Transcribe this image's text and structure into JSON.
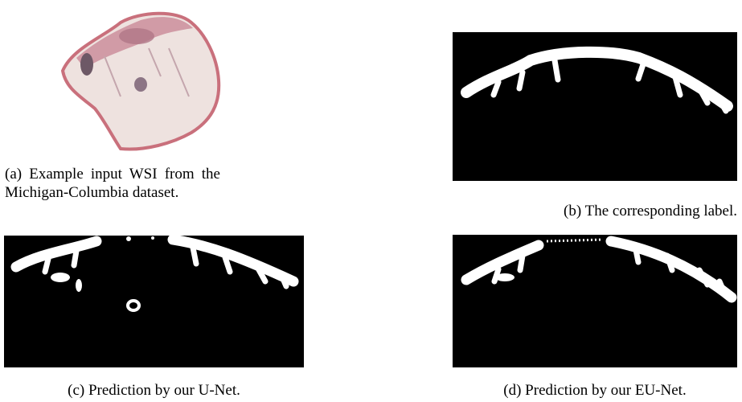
{
  "subfigures": [
    {
      "caption": "(a) Example input WSI from the Michigan-Columbia dataset."
    },
    {
      "caption": "(b) The corresponding label."
    },
    {
      "caption": "(c) Prediction by our U-Net."
    },
    {
      "caption": "(d) Prediction by our EU-Net."
    }
  ]
}
